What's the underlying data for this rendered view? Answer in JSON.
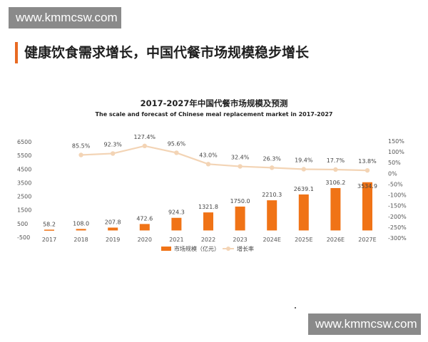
{
  "watermark": {
    "top_text": "www.kmmcsw.com",
    "bottom_text": "www.kmmcsw.com"
  },
  "headline": "健康饮食需求增长，中国代餐市场规模稳步增长",
  "colors": {
    "accent": "#e86a22",
    "bar": "#f07316",
    "line": "#f3d4b5",
    "axis_text": "#555555"
  },
  "chart_data": {
    "type": "bar",
    "title": "2017-2027年中国代餐市场规模及预测",
    "subtitle": "The scale and forecast of Chinese meal replacement market in 2017-2027",
    "categories": [
      "2017",
      "2018",
      "2019",
      "2020",
      "2021",
      "2022",
      "2023",
      "2024E",
      "2025E",
      "2026E",
      "2027E"
    ],
    "series": [
      {
        "name": "市场规模（亿元）",
        "type": "bar",
        "axis": "left",
        "values": [
          58.2,
          108.0,
          207.8,
          472.6,
          924.3,
          1321.8,
          1750.0,
          2210.3,
          2639.1,
          3106.2,
          3534.9
        ],
        "labels": [
          "58.2",
          "108.0",
          "207.8",
          "472.6",
          "924.3",
          "1321.8",
          "1750.0",
          "2210.3",
          "2639.1",
          "3106.2",
          "3534.9"
        ]
      },
      {
        "name": "增长率",
        "type": "line",
        "axis": "right",
        "values": [
          null,
          85.5,
          92.3,
          127.4,
          95.6,
          43.0,
          32.4,
          26.3,
          19.4,
          17.7,
          13.8
        ],
        "labels": [
          "",
          "85.5%",
          "92.3%",
          "127.4%",
          "95.6%",
          "43.0%",
          "32.4%",
          "26.3%",
          "19.4%",
          "17.7%",
          "13.8%"
        ]
      }
    ],
    "y_left": {
      "ticks": [
        "6500",
        "5500",
        "4500",
        "3500",
        "2500",
        "1500",
        "500",
        "-500"
      ],
      "ylim": [
        -500,
        6500
      ]
    },
    "y_right": {
      "ticks": [
        "150%",
        "100%",
        "50%",
        "0%",
        "-50%",
        "-100%",
        "-150%",
        "-200%",
        "-250%",
        "-300%"
      ],
      "ylim": [
        -300,
        150
      ]
    },
    "legend": {
      "position": "bottom",
      "items": [
        "市场规模（亿元）",
        "增长率"
      ]
    },
    "grid": false
  }
}
